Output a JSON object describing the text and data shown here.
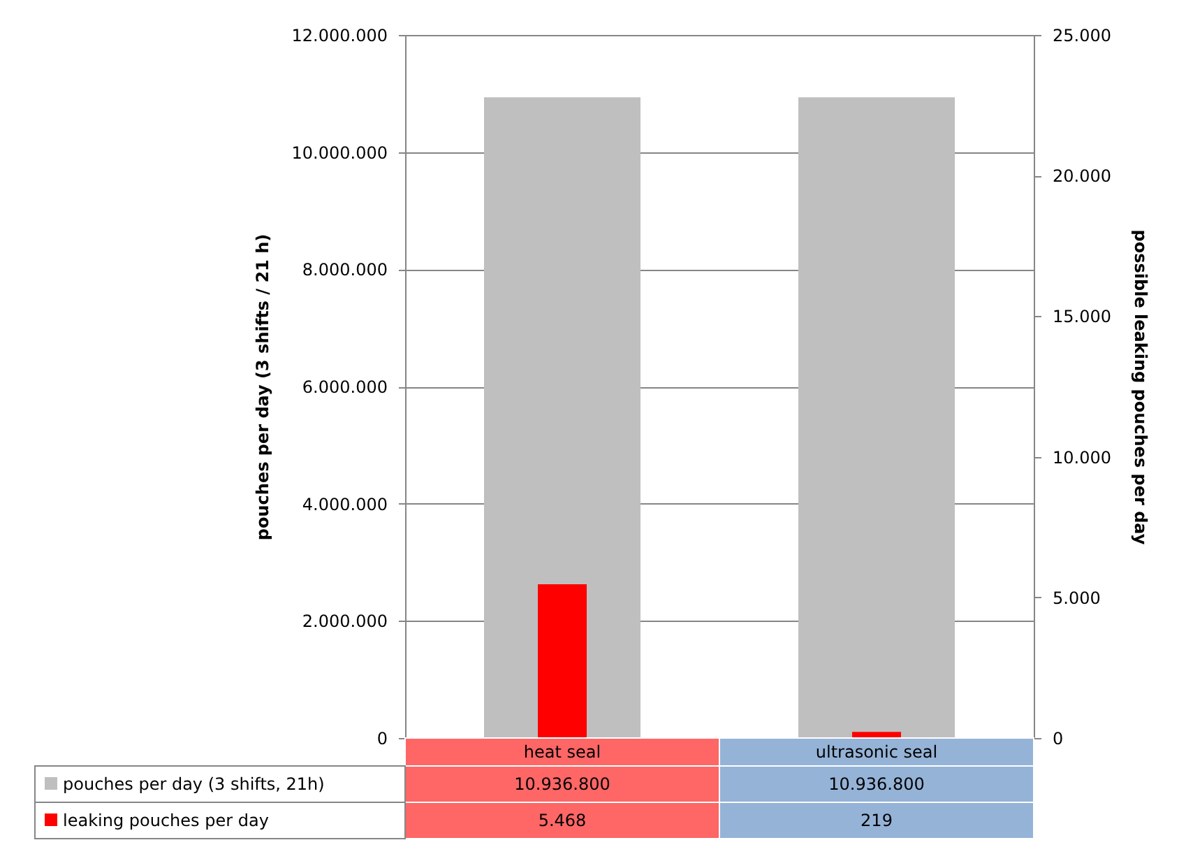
{
  "chart_data": {
    "type": "bar",
    "categories": [
      "heat seal",
      "ultrasonic seal"
    ],
    "ylabel": "pouches per day (3 shifts / 21 h)",
    "y2label": "possible leaking pouches per day",
    "ylim": [
      0,
      12000000
    ],
    "yticks": [
      0,
      {
        "value": 2000000,
        "label": "2.000.000"
      },
      {
        "value": 4000000,
        "label": "4.000.000"
      },
      {
        "value": 6000000,
        "label": "6.000.000"
      },
      {
        "value": 8000000,
        "label": "8.000.000"
      },
      {
        "value": 10000000,
        "label": "10.000.000"
      },
      {
        "value": 12000000,
        "label": "12.000.000"
      }
    ],
    "y2lim": [
      0,
      25000
    ],
    "y2ticks": [
      0,
      {
        "value": 5000,
        "label": "5.000"
      },
      {
        "value": 10000,
        "label": "10.000"
      },
      {
        "value": 15000,
        "label": "15.000"
      },
      {
        "value": 20000,
        "label": "20.000"
      },
      {
        "value": 25000,
        "label": "25.000"
      }
    ],
    "series": [
      {
        "name": "pouches per day (3 shifts, 21h)",
        "color": "#bfbfbf",
        "values": [
          10936800,
          10936800
        ],
        "value_labels": [
          "10.936.800",
          "10.936.800"
        ]
      },
      {
        "name": "leaking pouches per day",
        "color": "#ff0000",
        "values": [
          5468,
          219
        ],
        "value_labels": [
          "5.468",
          "219"
        ],
        "axis": "y2"
      }
    ],
    "grid": "y",
    "legend": "bottom"
  }
}
